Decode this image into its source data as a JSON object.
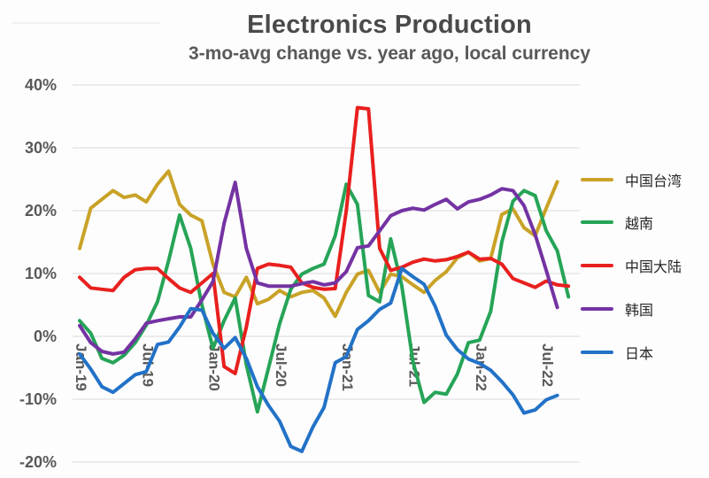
{
  "title": "Electronics Production",
  "subtitle": "3-mo-avg change vs. year ago, local currency",
  "chart_data": {
    "type": "line",
    "title": "Electronics Production",
    "subtitle": "3-mo-avg change vs. year ago, local currency",
    "y_unit": "%",
    "ylim": [
      -20,
      40
    ],
    "y_tick_labels": [
      "40%",
      "30%",
      "20%",
      "10%",
      "0%",
      "-10%",
      "-20%"
    ],
    "x_tick_labels": [
      "Jan-19",
      "Jul-19",
      "Jan-20",
      "Jul-20",
      "Jan-21",
      "Jul-21",
      "Jan-22",
      "Jul-22"
    ],
    "grid": "horizontal",
    "legend_position": "right",
    "months": [
      "Jan-19",
      "Feb-19",
      "Mar-19",
      "Apr-19",
      "May-19",
      "Jun-19",
      "Jul-19",
      "Aug-19",
      "Sep-19",
      "Oct-19",
      "Nov-19",
      "Dec-19",
      "Jan-20",
      "Feb-20",
      "Mar-20",
      "Apr-20",
      "May-20",
      "Jun-20",
      "Jul-20",
      "Aug-20",
      "Sep-20",
      "Oct-20",
      "Nov-20",
      "Dec-20",
      "Jan-21",
      "Feb-21",
      "Mar-21",
      "Apr-21",
      "May-21",
      "Jun-21",
      "Jul-21",
      "Aug-21",
      "Sep-21",
      "Oct-21",
      "Nov-21",
      "Dec-21",
      "Jan-22",
      "Feb-22",
      "Mar-22",
      "Apr-22",
      "May-22",
      "Jun-22",
      "Jul-22",
      "Aug-22",
      "Sep-22"
    ],
    "series": [
      {
        "key": "taiwan",
        "label": "中国台湾",
        "color": "#C9A227",
        "values": [
          14.0,
          20.4,
          21.8,
          23.2,
          22.1,
          22.5,
          21.4,
          24.2,
          26.3,
          21.0,
          19.3,
          18.4,
          11.5,
          7.0,
          6.3,
          9.4,
          5.2,
          5.9,
          7.3,
          6.3,
          7.0,
          7.3,
          6.1,
          3.2,
          7.0,
          9.9,
          10.5,
          7.0,
          9.9,
          9.5,
          8.2,
          7.0,
          8.9,
          10.3,
          12.5,
          13.4,
          12.0,
          12.4,
          19.4,
          20.3,
          17.3,
          16.0,
          20.4,
          24.6,
          null
        ]
      },
      {
        "key": "vietnam",
        "label": "越南",
        "color": "#26A457",
        "values": [
          2.5,
          0.5,
          -3.5,
          -4.2,
          -3.0,
          -1.0,
          1.8,
          5.5,
          12.0,
          19.3,
          14.0,
          5.0,
          -1.9,
          2.5,
          6.1,
          -4.5,
          -12.0,
          -5.0,
          2.0,
          7.5,
          9.9,
          10.8,
          11.5,
          16.0,
          24.2,
          21.0,
          6.5,
          5.5,
          15.5,
          8.0,
          -4.0,
          -10.5,
          -8.9,
          -9.2,
          -6.0,
          -1.0,
          -0.6,
          4.0,
          15.0,
          21.5,
          23.2,
          22.4,
          16.8,
          13.6,
          6.3
        ]
      },
      {
        "key": "china-mainland",
        "label": "中国大陆",
        "color": "#E8201E",
        "values": [
          9.4,
          7.7,
          7.5,
          7.3,
          9.4,
          10.6,
          10.8,
          10.8,
          9.2,
          7.7,
          7.0,
          8.5,
          10.0,
          -4.8,
          -5.9,
          1.5,
          10.8,
          11.5,
          11.3,
          11.0,
          8.5,
          7.8,
          7.5,
          7.6,
          20.0,
          36.4,
          36.2,
          14.0,
          10.5,
          11.0,
          11.8,
          12.3,
          12.0,
          12.2,
          12.7,
          13.4,
          12.3,
          12.4,
          11.5,
          9.2,
          8.5,
          7.8,
          8.8,
          8.2,
          8.0
        ]
      },
      {
        "key": "korea",
        "label": "韩国",
        "color": "#7433A3",
        "values": [
          1.7,
          -1.0,
          -2.4,
          -2.8,
          -2.5,
          -0.4,
          2.1,
          2.5,
          2.8,
          3.1,
          3.1,
          5.8,
          8.7,
          18.0,
          24.5,
          14.0,
          8.5,
          8.0,
          8.0,
          8.0,
          8.4,
          8.7,
          8.2,
          8.5,
          10.3,
          14.1,
          14.4,
          16.8,
          19.2,
          20.0,
          20.4,
          20.1,
          21.0,
          21.8,
          20.3,
          21.4,
          21.8,
          22.5,
          23.5,
          23.2,
          20.8,
          16.2,
          10.5,
          4.6,
          null
        ]
      },
      {
        "key": "japan",
        "label": "日本",
        "color": "#2272C7",
        "values": [
          -2.8,
          -5.2,
          -8.0,
          -8.9,
          -7.5,
          -6.1,
          -5.6,
          -1.3,
          -0.9,
          1.5,
          4.4,
          4.2,
          0.5,
          -1.9,
          -0.2,
          -3.5,
          -8.0,
          -11.0,
          -13.5,
          -17.5,
          -18.3,
          -14.4,
          -11.3,
          -4.2,
          -3.2,
          1.1,
          2.5,
          4.3,
          5.3,
          10.8,
          9.5,
          8.3,
          4.8,
          0.2,
          -2.1,
          -3.6,
          -4.3,
          -5.4,
          -7.2,
          -9.3,
          -12.2,
          -11.7,
          -10.1,
          -9.4,
          null
        ]
      }
    ]
  }
}
